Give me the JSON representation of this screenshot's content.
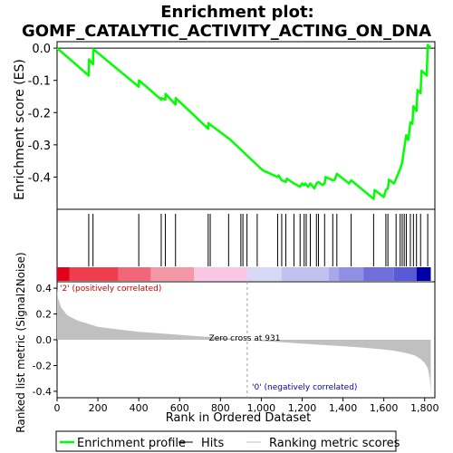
{
  "chart_data": {
    "type": "line",
    "title_line1": "Enrichment plot:",
    "title_line2": "GOMF_CATALYTIC_ACTIVITY_ACTING_ON_DNA",
    "es_panel": {
      "ylabel": "Enrichment score (ES)",
      "ylim": [
        -0.5,
        0.02
      ],
      "yticks": [
        0.0,
        -0.1,
        -0.2,
        -0.3,
        -0.4
      ],
      "ytick_labels": [
        "0.0",
        "-0.1",
        "-0.2",
        "-0.3",
        "-0.4"
      ],
      "line_color": "#00ff00",
      "es_curve": {
        "x": [
          0,
          155,
          156,
          176,
          177,
          400,
          401,
          510,
          511,
          530,
          531,
          580,
          581,
          740,
          741,
          840,
          850,
          1000,
          1010,
          1080,
          1085,
          1100,
          1120,
          1125,
          1160,
          1190,
          1200,
          1210,
          1215,
          1230,
          1240,
          1260,
          1270,
          1280,
          1300,
          1310,
          1315,
          1350,
          1360,
          1370,
          1430,
          1440,
          1550,
          1555,
          1600,
          1610,
          1620,
          1625,
          1650,
          1660,
          1670,
          1680,
          1690,
          1700,
          1710,
          1720,
          1730,
          1740,
          1745,
          1760,
          1765,
          1780,
          1785,
          1810,
          1815,
          1830
        ],
        "y": [
          0.0,
          -0.085,
          -0.035,
          -0.05,
          -0.003,
          -0.12,
          -0.1,
          -0.16,
          -0.155,
          -0.16,
          -0.142,
          -0.175,
          -0.155,
          -0.25,
          -0.233,
          -0.28,
          -0.285,
          -0.375,
          -0.38,
          -0.4,
          -0.395,
          -0.41,
          -0.415,
          -0.405,
          -0.42,
          -0.43,
          -0.42,
          -0.425,
          -0.42,
          -0.43,
          -0.42,
          -0.435,
          -0.42,
          -0.415,
          -0.425,
          -0.42,
          -0.4,
          -0.41,
          -0.408,
          -0.39,
          -0.42,
          -0.41,
          -0.468,
          -0.44,
          -0.462,
          -0.44,
          -0.435,
          -0.408,
          -0.42,
          -0.405,
          -0.39,
          -0.375,
          -0.355,
          -0.31,
          -0.27,
          -0.285,
          -0.23,
          -0.235,
          -0.18,
          -0.195,
          -0.13,
          -0.14,
          -0.07,
          -0.085,
          0.01,
          0.0
        ]
      }
    },
    "hits": [
      155,
      176,
      400,
      510,
      530,
      580,
      740,
      750,
      840,
      900,
      910,
      930,
      980,
      1080,
      1100,
      1120,
      1160,
      1190,
      1210,
      1220,
      1240,
      1270,
      1280,
      1310,
      1350,
      1370,
      1440,
      1550,
      1610,
      1620,
      1660,
      1680,
      1690,
      1700,
      1710,
      1730,
      1745,
      1760,
      1780,
      1815
    ],
    "rank_panel": {
      "ylabel": "Ranked list metric (Signal2Noise)",
      "xlabel": "Rank in Ordered Dataset",
      "ylim": [
        -0.45,
        0.45
      ],
      "yticks": [
        0.4,
        0.2,
        0.0,
        -0.2,
        -0.4
      ],
      "ytick_labels": [
        "0.4",
        "0.2",
        "0.0",
        "-0.2",
        "-0.4"
      ],
      "xlim": [
        0,
        1850
      ],
      "xticks": [
        0,
        200,
        400,
        600,
        800,
        1000,
        1200,
        1400,
        1600,
        1800
      ],
      "xtick_labels": [
        "0",
        "200",
        "400",
        "600",
        "800",
        "1,000",
        "1,200",
        "1,400",
        "1,600",
        "1,800"
      ],
      "zero_cross_rank": 931,
      "zero_cross_label": "Zero cross at 931",
      "pos_label": "'2' (positively correlated)",
      "neg_label": "'0' (negatively correlated)",
      "pos_color": "#cc0000",
      "neg_color": "#0000cc",
      "fill_color": "#c0c0c0",
      "metric_curve": {
        "x": [
          0,
          5,
          20,
          50,
          100,
          200,
          300,
          400,
          500,
          600,
          700,
          800,
          900,
          931,
          1000,
          1100,
          1200,
          1300,
          1400,
          1500,
          1600,
          1650,
          1700,
          1750,
          1780,
          1800,
          1815,
          1825,
          1830
        ],
        "y": [
          0.4,
          0.32,
          0.25,
          0.19,
          0.15,
          0.1,
          0.08,
          0.062,
          0.05,
          0.038,
          0.027,
          0.016,
          0.005,
          0.0,
          -0.01,
          -0.02,
          -0.03,
          -0.04,
          -0.05,
          -0.062,
          -0.075,
          -0.085,
          -0.1,
          -0.12,
          -0.15,
          -0.18,
          -0.22,
          -0.3,
          -0.42
        ]
      }
    },
    "color_bar": {
      "segments": [
        {
          "end": 60,
          "color": "#e2001a"
        },
        {
          "end": 300,
          "color": "#ee3d4c"
        },
        {
          "end": 460,
          "color": "#f16779"
        },
        {
          "end": 670,
          "color": "#f597a5"
        },
        {
          "end": 931,
          "color": "#f9c6e4"
        },
        {
          "end": 1100,
          "color": "#d8d8f7"
        },
        {
          "end": 1330,
          "color": "#c1c1f0"
        },
        {
          "end": 1380,
          "color": "#a7a7ea"
        },
        {
          "end": 1500,
          "color": "#8f8fe4"
        },
        {
          "end": 1650,
          "color": "#6f6fdc"
        },
        {
          "end": 1760,
          "color": "#5a5ad6"
        },
        {
          "end": 1830,
          "color": "#0000a8"
        }
      ]
    },
    "legend": {
      "items": [
        {
          "label": "Enrichment profile",
          "color": "#00ff00",
          "style": "thick"
        },
        {
          "label": "Hits",
          "color": "#000000",
          "style": "thin"
        },
        {
          "label": "Ranking metric scores",
          "color": "#c0c0c0",
          "style": "thin"
        }
      ]
    }
  }
}
